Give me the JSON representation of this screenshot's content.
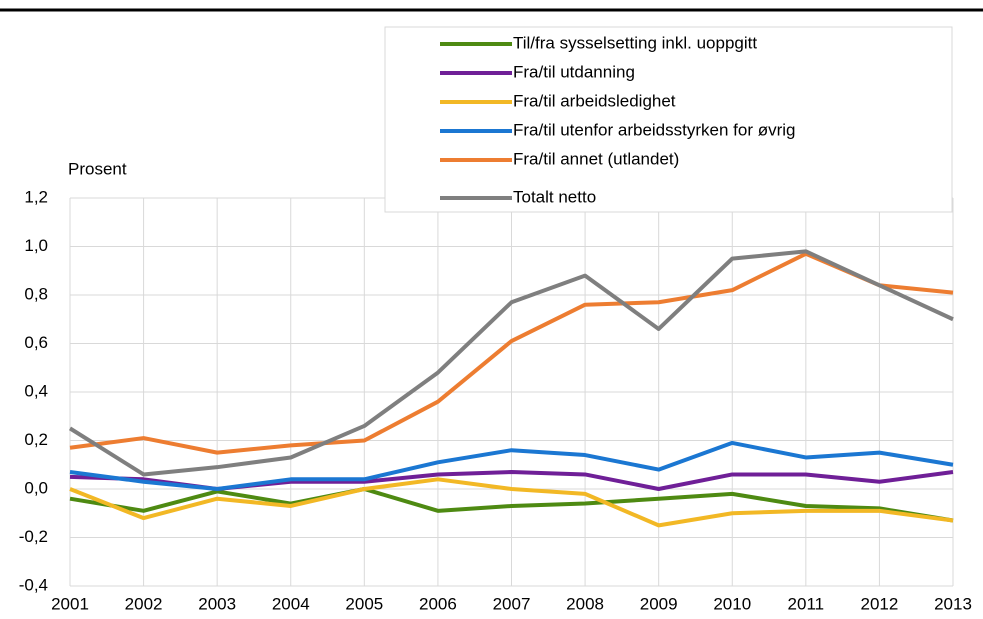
{
  "chart_data": {
    "type": "line",
    "y_label": "Prosent",
    "categories": [
      "2001",
      "2002",
      "2003",
      "2004",
      "2005",
      "2006",
      "2007",
      "2008",
      "2009",
      "2010",
      "2011",
      "2012",
      "2013"
    ],
    "series": [
      {
        "name": "Til/fra sysselsetting inkl. uoppgitt",
        "color": "#4e8a12",
        "values": [
          -0.04,
          -0.09,
          -0.01,
          -0.06,
          0.0,
          -0.09,
          -0.07,
          -0.06,
          -0.04,
          -0.02,
          -0.07,
          -0.08,
          -0.13
        ]
      },
      {
        "name": "Fra/til utdanning",
        "color": "#6f1f97",
        "values": [
          0.05,
          0.04,
          0.0,
          0.03,
          0.03,
          0.06,
          0.07,
          0.06,
          0.0,
          0.06,
          0.06,
          0.03,
          0.07
        ]
      },
      {
        "name": "Fra/til arbeidsledighet",
        "color": "#f2b825",
        "values": [
          0.0,
          -0.12,
          -0.04,
          -0.07,
          0.0,
          0.04,
          0.0,
          -0.02,
          -0.15,
          -0.1,
          -0.09,
          -0.09,
          -0.13
        ]
      },
      {
        "name": "Fra/til utenfor arbeidsstyrken for øvrig",
        "color": "#1b77d2",
        "values": [
          0.07,
          0.03,
          0.0,
          0.04,
          0.04,
          0.11,
          0.16,
          0.14,
          0.08,
          0.19,
          0.13,
          0.15,
          0.1
        ]
      },
      {
        "name": "Fra/til annet (utlandet)",
        "color": "#ed7d31",
        "values": [
          0.17,
          0.21,
          0.15,
          0.18,
          0.2,
          0.36,
          0.61,
          0.76,
          0.77,
          0.82,
          0.97,
          0.84,
          0.81
        ]
      },
      {
        "name": "Totalt netto",
        "color": "#7f7f7f",
        "values": [
          0.25,
          0.06,
          0.09,
          0.13,
          0.26,
          0.48,
          0.77,
          0.88,
          0.66,
          0.95,
          0.98,
          0.84,
          0.7
        ]
      }
    ],
    "ylim": [
      -0.4,
      1.2
    ],
    "yticks": [
      {
        "value": -0.4,
        "label": "-0,4"
      },
      {
        "value": -0.2,
        "label": "-0,2"
      },
      {
        "value": 0,
        "label": "0,0"
      },
      {
        "value": 0.2,
        "label": "0,2"
      },
      {
        "value": 0.4,
        "label": "0,4"
      },
      {
        "value": 0.6,
        "label": "0,6"
      },
      {
        "value": 0.8,
        "label": "0,8"
      },
      {
        "value": 1.0,
        "label": "1,0"
      },
      {
        "value": 1.2,
        "label": "1,2"
      }
    ],
    "grid": true,
    "legend": "top-right"
  }
}
